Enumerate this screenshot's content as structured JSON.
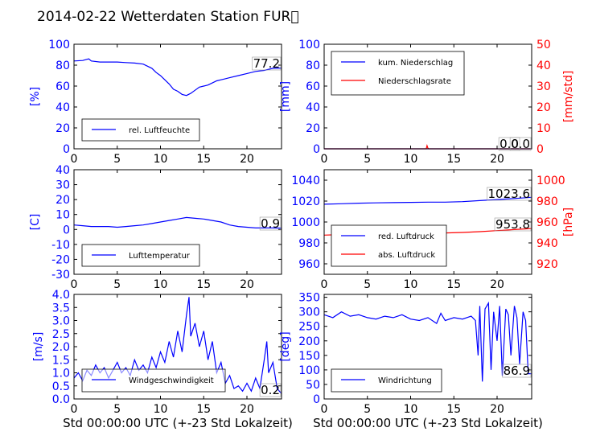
{
  "figure": {
    "title": "2014-02-22 Wetterdaten Station FUR\u0000"
  },
  "colors": {
    "blue": "#0000ff",
    "red": "#ff0000",
    "axis": "#000000"
  },
  "chart_data": [
    {
      "type": "line",
      "ylabel": "[%]",
      "xlim": [
        0,
        24
      ],
      "ylim": [
        0,
        100
      ],
      "xticks": [
        0,
        5,
        10,
        15,
        20
      ],
      "yticks": [
        0,
        20,
        40,
        60,
        80,
        100
      ],
      "annotation": "77.2",
      "legend": {
        "placement": "lower-left",
        "entries": [
          "rel. Luftfeuchte"
        ]
      },
      "series": [
        {
          "name": "rel. Luftfeuchte",
          "color": "#0000ff",
          "x": [
            0,
            1,
            1.7,
            2,
            3,
            4,
            5,
            6,
            7,
            8,
            8.5,
            9,
            9.5,
            10,
            10.5,
            11,
            11.5,
            12,
            12.5,
            13,
            13.5,
            14,
            14.5,
            15,
            15.5,
            16,
            16.5,
            17,
            17.5,
            18,
            19,
            20,
            21,
            22,
            23,
            24
          ],
          "y": [
            84,
            84.5,
            86,
            84,
            83,
            83,
            83,
            82.5,
            82,
            81,
            79,
            77,
            73,
            70,
            66,
            62,
            57,
            55,
            52,
            51,
            53,
            56,
            59,
            60,
            61,
            63,
            65,
            66,
            67,
            68,
            70,
            72,
            74,
            75,
            77,
            77.2
          ]
        }
      ]
    },
    {
      "type": "line",
      "ylabel": "[mm]",
      "ylabel2": "[mm/std]",
      "xlim": [
        0,
        24
      ],
      "ylim": [
        0,
        100
      ],
      "ylim2": [
        0,
        50
      ],
      "xticks": [
        0,
        5,
        10,
        15,
        20
      ],
      "yticks": [
        0,
        20,
        40,
        60,
        80,
        100
      ],
      "yticks2": [
        0,
        10,
        20,
        30,
        40,
        50
      ],
      "annotation": "0.0",
      "annotation2": "0.0",
      "legend": {
        "placement": "upper-left",
        "entries": [
          "kum. Niederschlag",
          "Niederschlagsrate"
        ]
      },
      "series": [
        {
          "name": "kum. Niederschlag",
          "color": "#0000ff",
          "axis": "left",
          "x": [
            0,
            24
          ],
          "y": [
            0,
            0
          ]
        },
        {
          "name": "Niederschlagsrate",
          "color": "#ff0000",
          "axis": "right",
          "x": [
            0,
            11.8,
            11.9,
            12.0,
            12.1,
            24
          ],
          "y": [
            0,
            0,
            1.5,
            0.3,
            0,
            0
          ]
        }
      ]
    },
    {
      "type": "line",
      "ylabel": "[C]",
      "xlim": [
        0,
        24
      ],
      "ylim": [
        -30,
        40
      ],
      "xticks": [
        0,
        5,
        10,
        15,
        20
      ],
      "yticks": [
        -30,
        -20,
        -10,
        0,
        10,
        20,
        30,
        40
      ],
      "annotation": "0.9",
      "legend": {
        "placement": "lower-left",
        "entries": [
          "Lufttemperatur"
        ]
      },
      "series": [
        {
          "name": "Lufttemperatur",
          "color": "#0000ff",
          "x": [
            0,
            1,
            2,
            3,
            4,
            5,
            6,
            7,
            8,
            9,
            10,
            11,
            12,
            13,
            14,
            15,
            16,
            17,
            18,
            19,
            20,
            21,
            22,
            23,
            24
          ],
          "y": [
            3,
            2.5,
            2,
            2,
            2,
            1.5,
            2,
            2.5,
            3,
            4,
            5,
            6,
            7,
            8,
            7.5,
            7,
            6,
            5,
            3,
            2,
            1.5,
            1,
            1,
            1,
            0.9
          ]
        }
      ]
    },
    {
      "type": "line",
      "ylabel2": "[hPa]",
      "xlim": [
        0,
        24
      ],
      "ylim": [
        950,
        1050
      ],
      "ylim2": [
        910,
        1010
      ],
      "xticks": [
        0,
        5,
        10,
        15,
        20
      ],
      "yticks": [
        960,
        980,
        1000,
        1020,
        1040
      ],
      "yticks2": [
        920,
        940,
        960,
        980,
        1000
      ],
      "annotation": "1023.6",
      "annotation2": "953.8",
      "legend": {
        "placement": "lower-left",
        "entries": [
          "red. Luftdruck",
          "abs. Luftdruck"
        ]
      },
      "series": [
        {
          "name": "red. Luftdruck",
          "color": "#0000ff",
          "axis": "left",
          "x": [
            0,
            2,
            4,
            6,
            8,
            10,
            12,
            14,
            16,
            18,
            20,
            22,
            24
          ],
          "y": [
            1017,
            1017.5,
            1018,
            1018.3,
            1018.5,
            1018.8,
            1019,
            1019,
            1019.5,
            1020.5,
            1021.5,
            1022.5,
            1023.6
          ]
        },
        {
          "name": "abs. Luftdruck",
          "color": "#ff0000",
          "axis": "right",
          "x": [
            0,
            2,
            4,
            6,
            8,
            10,
            12,
            14,
            16,
            18,
            20,
            22,
            24
          ],
          "y": [
            947.5,
            948,
            948.3,
            948.5,
            948.8,
            949,
            949.2,
            949.5,
            950,
            950.8,
            951.8,
            952.8,
            953.8
          ]
        }
      ]
    },
    {
      "type": "line",
      "ylabel": "[m/s]",
      "xlabel": "Std 00:00:00 UTC (+-23 Std Lokalzeit)",
      "xlim": [
        0,
        24
      ],
      "ylim": [
        0,
        4
      ],
      "xticks": [
        0,
        5,
        10,
        15,
        20
      ],
      "yticks": [
        0.0,
        0.5,
        1.0,
        1.5,
        2.0,
        2.5,
        3.0,
        3.5,
        4.0
      ],
      "annotation": "0.2",
      "legend": {
        "placement": "lower-left",
        "entries": [
          "Windgeschwindigkeit"
        ]
      },
      "series": [
        {
          "name": "Windgeschwindigkeit",
          "color": "#0000ff",
          "x": [
            0,
            0.5,
            1,
            1.5,
            2,
            2.5,
            3,
            3.5,
            4,
            4.5,
            5,
            5.5,
            6,
            6.5,
            7,
            7.5,
            8,
            8.5,
            9,
            9.5,
            10,
            10.5,
            11,
            11.5,
            12,
            12.5,
            13,
            13.3,
            13.5,
            14,
            14.5,
            15,
            15.5,
            16,
            16.5,
            17,
            17.5,
            18,
            18.5,
            19,
            19.5,
            20,
            20.5,
            21,
            21.5,
            22,
            22.3,
            22.5,
            23,
            23.5,
            24
          ],
          "y": [
            0.8,
            1.0,
            0.7,
            1.1,
            0.9,
            1.3,
            1.0,
            1.2,
            0.8,
            1.1,
            1.4,
            1.0,
            1.2,
            0.9,
            1.5,
            1.1,
            1.3,
            1.0,
            1.6,
            1.2,
            1.8,
            1.4,
            2.2,
            1.6,
            2.6,
            1.8,
            3.2,
            3.9,
            2.4,
            2.9,
            2.0,
            2.6,
            1.5,
            2.2,
            1.0,
            1.4,
            0.6,
            0.9,
            0.4,
            0.5,
            0.3,
            0.6,
            0.3,
            0.8,
            0.4,
            1.5,
            2.2,
            1.0,
            1.4,
            0.4,
            0.2
          ]
        }
      ]
    },
    {
      "type": "line",
      "ylabel": "[deg]",
      "xlabel": "Std 00:00:00 UTC (+-23 Std Lokalzeit)",
      "xlim": [
        0,
        24
      ],
      "ylim": [
        0,
        360
      ],
      "xticks": [
        0,
        5,
        10,
        15,
        20
      ],
      "yticks": [
        0,
        50,
        100,
        150,
        200,
        250,
        300,
        350
      ],
      "annotation": "86.9",
      "legend": {
        "placement": "lower-left",
        "entries": [
          "Windrichtung"
        ]
      },
      "series": [
        {
          "name": "Windrichtung",
          "color": "#0000ff",
          "x": [
            0,
            1,
            2,
            3,
            4,
            5,
            6,
            7,
            8,
            9,
            10,
            11,
            12,
            13,
            13.5,
            14,
            15,
            16,
            17,
            17.5,
            17.8,
            18,
            18.3,
            18.6,
            19,
            19.3,
            19.6,
            20,
            20.3,
            20.6,
            21,
            21.3,
            21.6,
            22,
            22.3,
            22.6,
            23,
            23.3,
            23.6,
            24
          ],
          "y": [
            290,
            280,
            300,
            285,
            290,
            280,
            275,
            285,
            280,
            290,
            275,
            270,
            280,
            260,
            295,
            270,
            280,
            275,
            285,
            270,
            150,
            320,
            60,
            310,
            330,
            100,
            300,
            200,
            320,
            80,
            310,
            290,
            150,
            320,
            280,
            120,
            300,
            270,
            87,
            86.9
          ]
        }
      ]
    }
  ]
}
